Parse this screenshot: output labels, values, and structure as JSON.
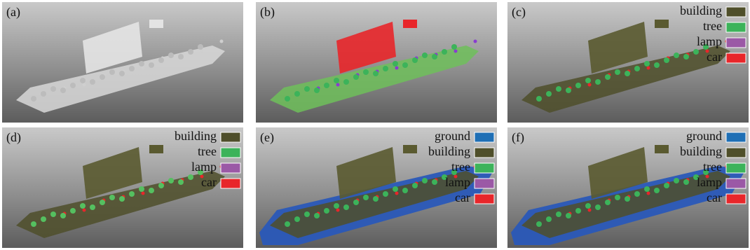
{
  "panels": [
    {
      "label": "(a)",
      "legend": []
    },
    {
      "label": "(b)",
      "legend": []
    },
    {
      "label": "(c)",
      "legend": [
        {
          "name": "building",
          "color": "#4f4f2a"
        },
        {
          "name": "tree",
          "color": "#3cb35a"
        },
        {
          "name": "lamp",
          "color": "#9b59a6"
        },
        {
          "name": "car",
          "color": "#e8262a"
        }
      ]
    },
    {
      "label": "(d)",
      "legend": [
        {
          "name": "building",
          "color": "#4f4f2a"
        },
        {
          "name": "tree",
          "color": "#3cb35a"
        },
        {
          "name": "lamp",
          "color": "#9b59a6"
        },
        {
          "name": "car",
          "color": "#e8262a"
        }
      ]
    },
    {
      "label": "(e)",
      "legend": [
        {
          "name": "ground",
          "color": "#1f6fb5"
        },
        {
          "name": "building",
          "color": "#4f4f2a"
        },
        {
          "name": "tree",
          "color": "#3cb35a"
        },
        {
          "name": "lamp",
          "color": "#9b59a6"
        },
        {
          "name": "car",
          "color": "#e8262a"
        }
      ]
    },
    {
      "label": "(f)",
      "legend": [
        {
          "name": "ground",
          "color": "#1f6fb5"
        },
        {
          "name": "building",
          "color": "#4f4f2a"
        },
        {
          "name": "tree",
          "color": "#3cb35a"
        },
        {
          "name": "lamp",
          "color": "#9b59a6"
        },
        {
          "name": "car",
          "color": "#e8262a"
        }
      ]
    }
  ]
}
